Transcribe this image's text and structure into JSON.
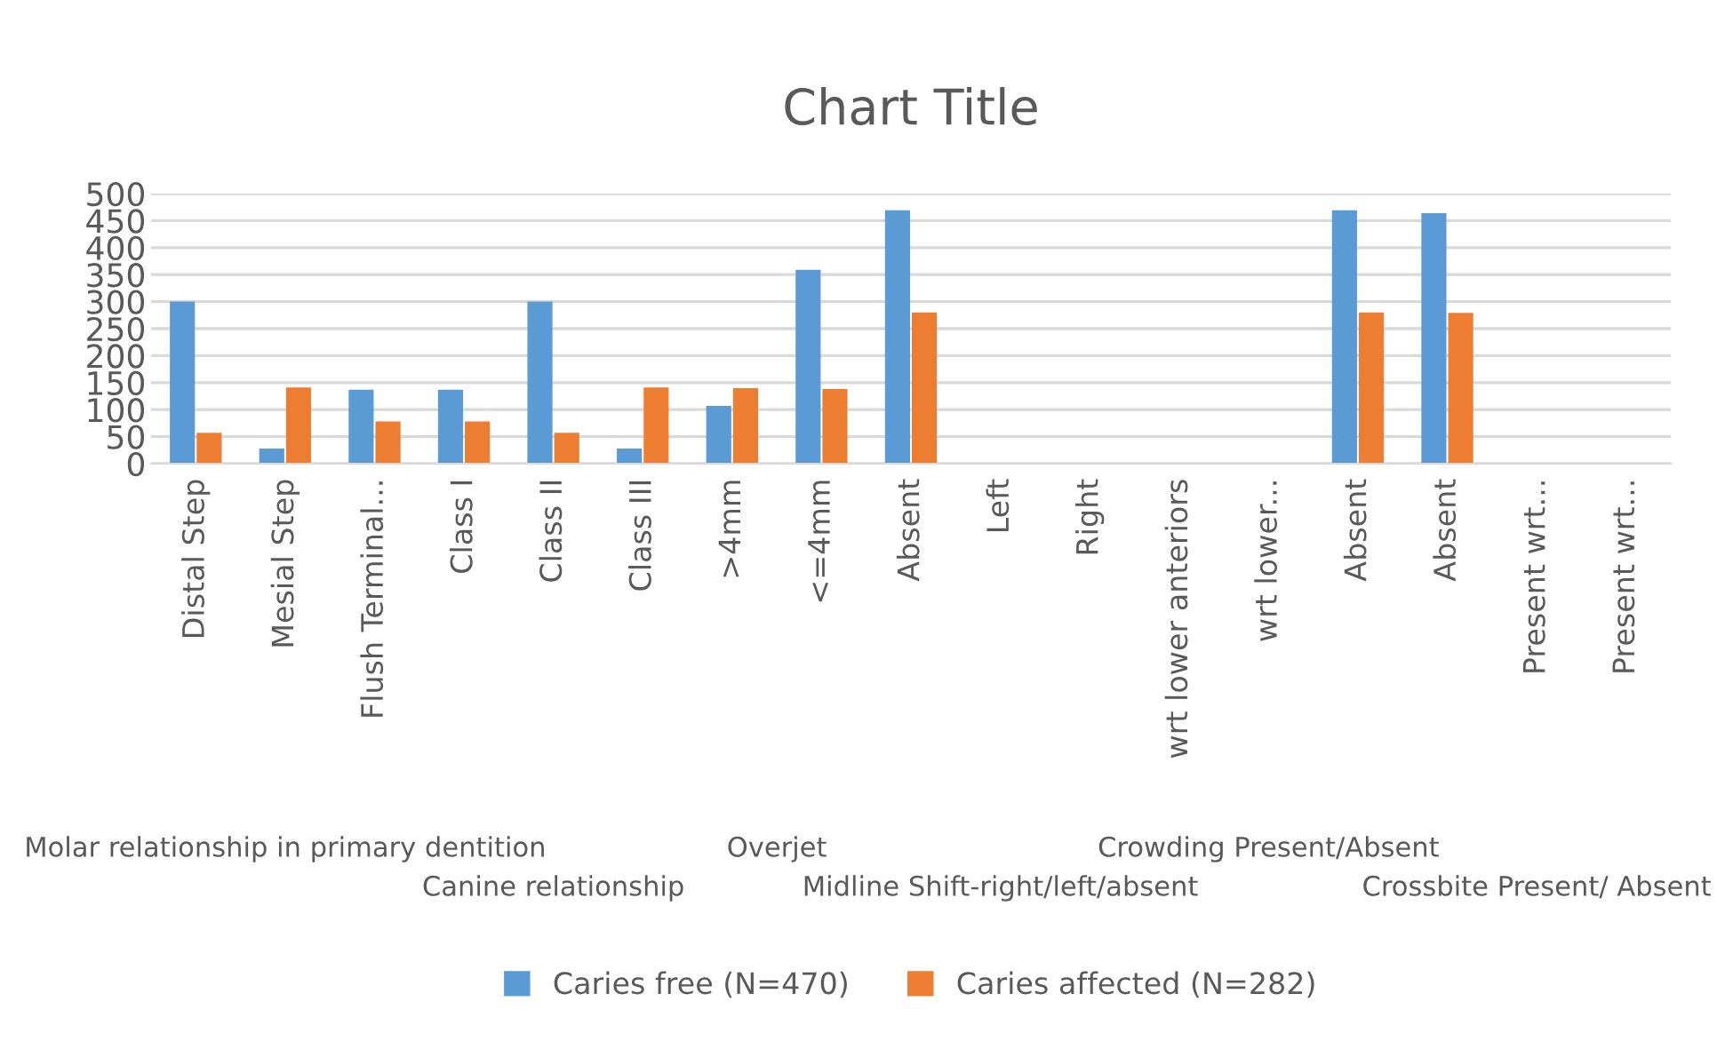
{
  "chart_data": {
    "type": "bar",
    "title": "Chart Title",
    "categories": [
      "Distal Step",
      "Mesial Step",
      "Flush Terminal...",
      "Class I",
      "Class II",
      "Class III",
      ">4mm",
      "<=4mm",
      "Absent",
      "Left",
      "Right",
      "wrt lower anteriors",
      "wrt lower...",
      "Absent",
      "Absent",
      "Present wrt...",
      "Present wrt..."
    ],
    "series": [
      {
        "name": "Caries free (N=470)",
        "color": "#5b9bd5",
        "values": [
          300,
          28,
          137,
          137,
          300,
          28,
          107,
          359,
          469,
          null,
          null,
          null,
          null,
          469,
          464,
          null,
          null
        ]
      },
      {
        "name": "Caries affected (N=282)",
        "color": "#ed7d31",
        "values": [
          57,
          141,
          78,
          78,
          57,
          141,
          140,
          138,
          280,
          null,
          null,
          null,
          null,
          280,
          279,
          null,
          null
        ]
      }
    ],
    "ylim": [
      0,
      500
    ],
    "yticks": [
      0,
      50,
      100,
      150,
      200,
      250,
      300,
      350,
      400,
      450,
      500
    ],
    "grid": "y",
    "legend": "bottom",
    "annotations": [
      "Molar relationship in primary dentition",
      "Canine relationship",
      "Overjet",
      "Midline Shift-right/left/absent",
      "Crowding Present/Absent",
      "Crossbite Present/ Absent"
    ]
  }
}
